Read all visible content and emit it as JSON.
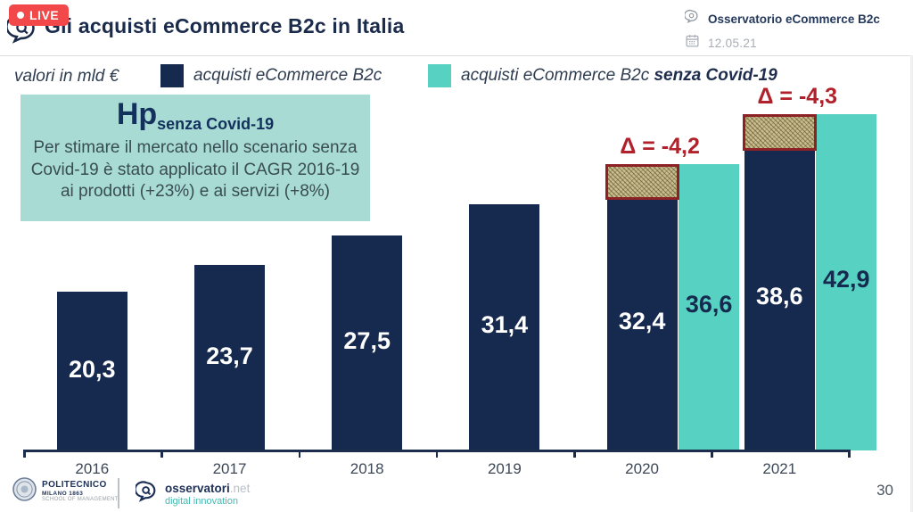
{
  "header": {
    "live_badge": "LIVE",
    "title": "Gli acquisti eCommerce B2c in Italia",
    "meta_title": "Osservatorio eCommerce B2c",
    "meta_date": "12.05.21"
  },
  "legend": {
    "axis_note": "valori in mld €",
    "items": [
      {
        "label": "acquisti eCommerce B2c",
        "color": "#16294e"
      },
      {
        "label": "acquisti eCommerce B2c ",
        "label_bold": "senza Covid-19",
        "color": "#57d1c1"
      }
    ]
  },
  "hp_box": {
    "title_main": "Hp",
    "title_sub": "senza Covid-19",
    "body": "Per stimare il mercato nello scenario senza Covid-19 è stato applicato il CAGR 2016-19 ai prodotti (+23%) e ai servizi (+8%)"
  },
  "chart_data": {
    "type": "bar",
    "title": "Gli acquisti eCommerce B2c in Italia",
    "unit": "valori in mld €",
    "categories": [
      "2016",
      "2017",
      "2018",
      "2019",
      "2020",
      "2021"
    ],
    "series": [
      {
        "name": "acquisti eCommerce B2c",
        "color": "#16294e",
        "label_color": "#ffffff",
        "values": [
          20.3,
          23.7,
          27.5,
          31.4,
          32.4,
          38.6
        ],
        "labels": [
          "20,3",
          "23,7",
          "27,5",
          "31,4",
          "32,4",
          "38,6"
        ]
      },
      {
        "name": "acquisti eCommerce B2c senza Covid-19",
        "color": "#57d1c1",
        "label_color": "#16294e",
        "values": [
          null,
          null,
          null,
          null,
          36.6,
          42.9
        ],
        "labels": [
          null,
          null,
          null,
          null,
          "36,6",
          "42,9"
        ]
      }
    ],
    "annotations": [
      {
        "category": "2020",
        "label": "Δ = -4,2",
        "delta": -4.2
      },
      {
        "category": "2021",
        "label": "Δ = -4,3",
        "delta": -4.3
      }
    ],
    "ylim": [
      0,
      45
    ],
    "grid": false,
    "legend_position": "top"
  },
  "footer": {
    "politecnico": {
      "line1": "POLITECNICO",
      "line2": "MILANO 1863",
      "line3": "SCHOOL OF MANAGEMENT"
    },
    "osservatori": {
      "brand": "osservatori",
      "brand_suffix": ".net",
      "tagline": "digital innovation"
    },
    "page_number": "30"
  },
  "colors": {
    "navy": "#16294e",
    "teal": "#57d1c1",
    "hp_box_bg": "#a7dbd3",
    "delta_red": "#b0212b",
    "hatch_fill": "#c9bc8d",
    "hatch_border": "#8e2126",
    "live_red": "#f2484a"
  }
}
